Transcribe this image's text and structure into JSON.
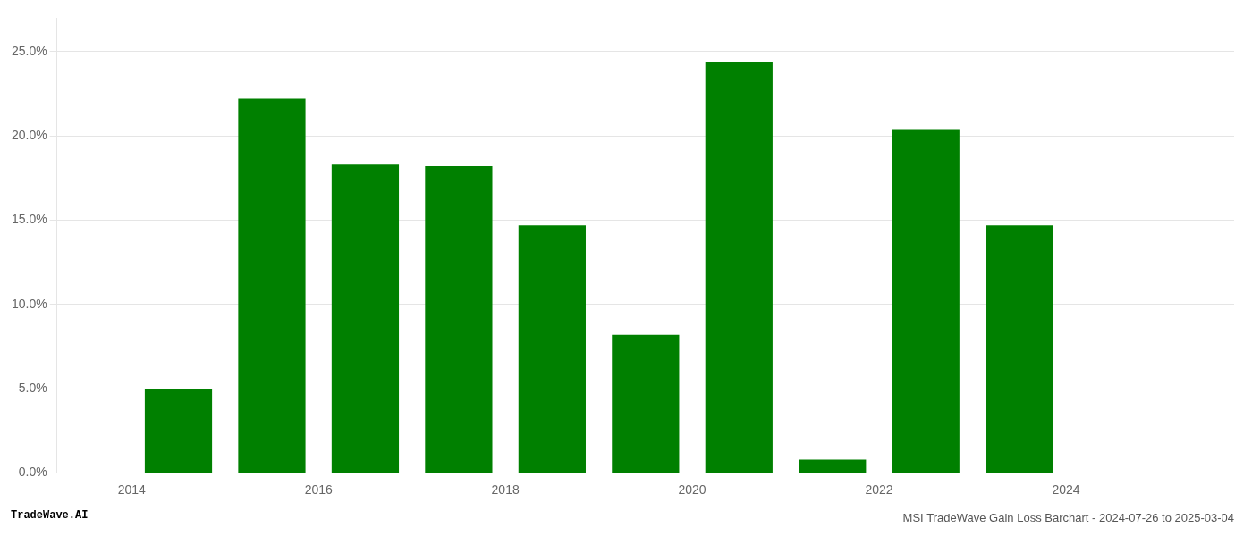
{
  "chart_data": {
    "type": "bar",
    "title": "MSI TradeWave Gain Loss Barchart - 2024-07-26 to 2025-03-04",
    "annotations": [
      "TradeWave.AI"
    ],
    "x": [
      2014.5,
      2015.5,
      2016.5,
      2017.5,
      2018.5,
      2019.5,
      2020.5,
      2021.5,
      2022.5,
      2023.5,
      2024.5
    ],
    "values": [
      0.0498,
      0.222,
      0.183,
      0.182,
      0.147,
      0.082,
      0.244,
      0.008,
      0.204,
      0.147,
      0.0
    ],
    "color": "#008000",
    "xlim": [
      2013.2,
      2025.8
    ],
    "xticks": [
      2014,
      2016,
      2018,
      2020,
      2022,
      2024
    ],
    "ylim": [
      0,
      0.27
    ],
    "yticks": [
      {
        "value": 0.0,
        "label": "0.0%"
      },
      {
        "value": 0.05,
        "label": "5.0%"
      },
      {
        "value": 0.1,
        "label": "10.0%"
      },
      {
        "value": 0.15,
        "label": "15.0%"
      },
      {
        "value": 0.2,
        "label": "20.0%"
      },
      {
        "value": 0.25,
        "label": "25.0%"
      }
    ],
    "grid": "y"
  }
}
